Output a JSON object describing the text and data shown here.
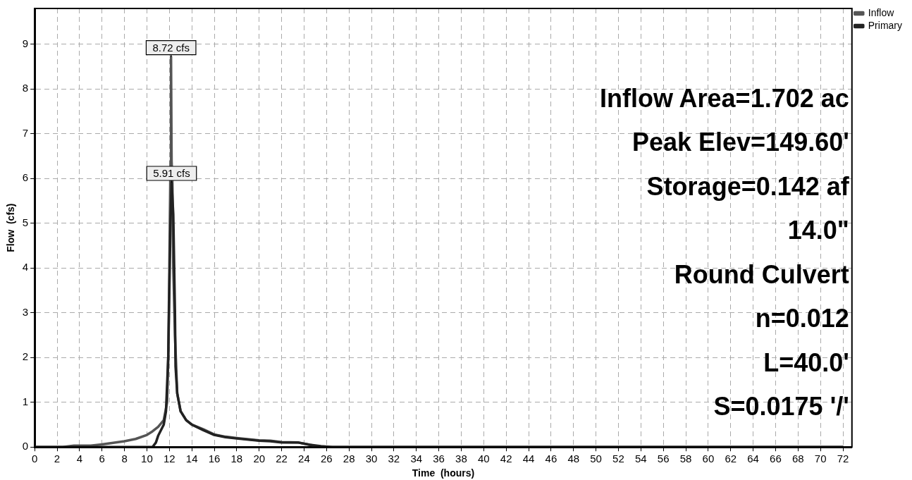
{
  "chart_data": {
    "type": "line",
    "xlabel": "Time  (hours)",
    "ylabel": "Flow  (cfs)",
    "xlim": [
      0,
      72.8
    ],
    "xticks": [
      0,
      2,
      4,
      6,
      8,
      10,
      12,
      14,
      16,
      18,
      20,
      22,
      24,
      26,
      28,
      30,
      32,
      34,
      36,
      38,
      40,
      42,
      44,
      46,
      48,
      50,
      52,
      54,
      56,
      58,
      60,
      62,
      64,
      66,
      68,
      70,
      72
    ],
    "ylim": [
      0,
      9.8
    ],
    "yticks": [
      0,
      1,
      2,
      3,
      4,
      5,
      6,
      7,
      8,
      9
    ],
    "grid": true,
    "line_style": "solid",
    "marker": "none",
    "legend": "top right",
    "series": [
      {
        "name": "Inflow",
        "color": "#555555",
        "x": [
          0,
          2.5,
          3.5,
          5,
          6,
          8,
          9,
          10,
          10.5,
          11,
          11.5,
          11.8,
          11.9,
          12,
          12.08,
          12.12,
          12.15,
          12.2,
          12.27,
          12.35,
          12.5,
          12.7,
          13,
          13.5,
          14,
          15,
          16,
          17,
          18,
          20,
          21,
          22,
          23.5,
          24.5,
          25,
          26,
          72
        ],
        "values": [
          0,
          0,
          0.03,
          0.03,
          0.06,
          0.13,
          0.18,
          0.27,
          0.35,
          0.45,
          0.6,
          1,
          2,
          4,
          5.9,
          6.4,
          8.72,
          6.4,
          5.9,
          4,
          2.5,
          1.2,
          0.8,
          0.6,
          0.5,
          0.4,
          0.28,
          0.23,
          0.2,
          0.15,
          0.14,
          0.11,
          0.1,
          0.05,
          0.02,
          0,
          0
        ]
      },
      {
        "name": "Primary",
        "color": "#222222",
        "x": [
          0,
          10.5,
          10.8,
          11,
          11.5,
          11.7,
          11.9,
          12,
          12.1,
          12.2,
          12.35,
          12.5,
          12.55,
          12.7,
          13,
          13.5,
          14,
          15,
          16,
          17,
          18,
          20,
          21,
          22,
          23.5,
          24.5,
          25.5,
          26.5,
          72
        ],
        "values": [
          0,
          0,
          0.1,
          0.25,
          0.5,
          0.8,
          2,
          3.5,
          5,
          5.91,
          5.2,
          3,
          1.8,
          1.2,
          0.8,
          0.6,
          0.5,
          0.38,
          0.27,
          0.22,
          0.19,
          0.14,
          0.13,
          0.1,
          0.1,
          0.05,
          0.02,
          0,
          0
        ]
      }
    ],
    "annotations": [
      {
        "text": "8.72 cfs",
        "x": 12.15,
        "y": 8.72
      },
      {
        "text": "5.91 cfs",
        "x": 12.2,
        "y": 5.91
      },
      "Inflow Area=1.702 ac",
      "Peak Elev=149.60'",
      "Storage=0.142 af",
      "14.0\"",
      "Round Culvert",
      "n=0.012",
      "L=40.0'",
      "S=0.0175 '/'"
    ]
  }
}
